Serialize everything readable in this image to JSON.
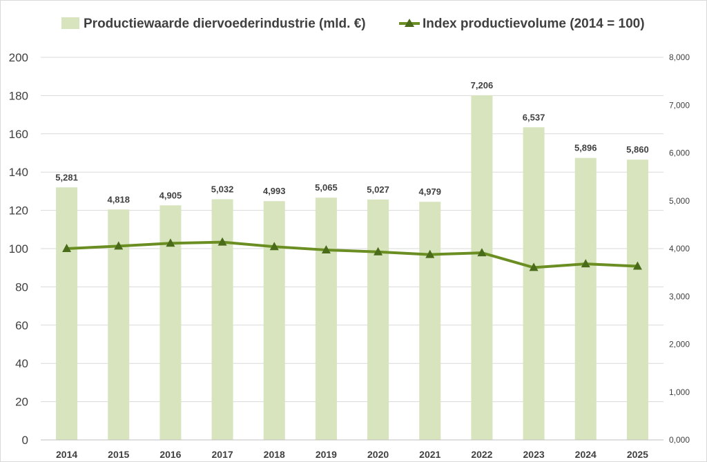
{
  "chart_data": {
    "type": "bar",
    "categories": [
      "2014",
      "2015",
      "2016",
      "2017",
      "2018",
      "2019",
      "2020",
      "2021",
      "2022",
      "2023",
      "2024",
      "2025"
    ],
    "series": [
      {
        "name": "Productiewaarde diervoederindustrie (mld. €)",
        "type": "bar",
        "axis": "right",
        "values": [
          5.281,
          4.818,
          4.905,
          5.032,
          4.993,
          5.065,
          5.027,
          4.979,
          7.206,
          6.537,
          5.896,
          5.86
        ],
        "labels": [
          "5,281",
          "4,818",
          "4,905",
          "5,032",
          "4,993",
          "5,065",
          "5,027",
          "4,979",
          "7,206",
          "6,537",
          "5,896",
          "5,860"
        ],
        "color": "#d7e4bd"
      },
      {
        "name": "Index productievolume (2014 = 100)",
        "type": "line",
        "marker": "triangle",
        "axis": "left",
        "values": [
          100,
          101.3,
          102.8,
          103.4,
          101,
          99.3,
          98.3,
          96.9,
          97.8,
          90.1,
          92,
          90.8
        ],
        "color": "#6b8e23",
        "marker_color": "#4a6b1a"
      }
    ],
    "y_left": {
      "ylim": [
        0,
        200
      ],
      "ticks": [
        "0",
        "20",
        "40",
        "60",
        "80",
        "100",
        "120",
        "140",
        "160",
        "180",
        "200"
      ]
    },
    "y_right": {
      "ylim": [
        0,
        8
      ],
      "ticks": [
        "0,000",
        "1,000",
        "2,000",
        "3,000",
        "4,000",
        "5,000",
        "6,000",
        "7,000",
        "8,000"
      ]
    },
    "grid": true,
    "legend_position": "top"
  }
}
